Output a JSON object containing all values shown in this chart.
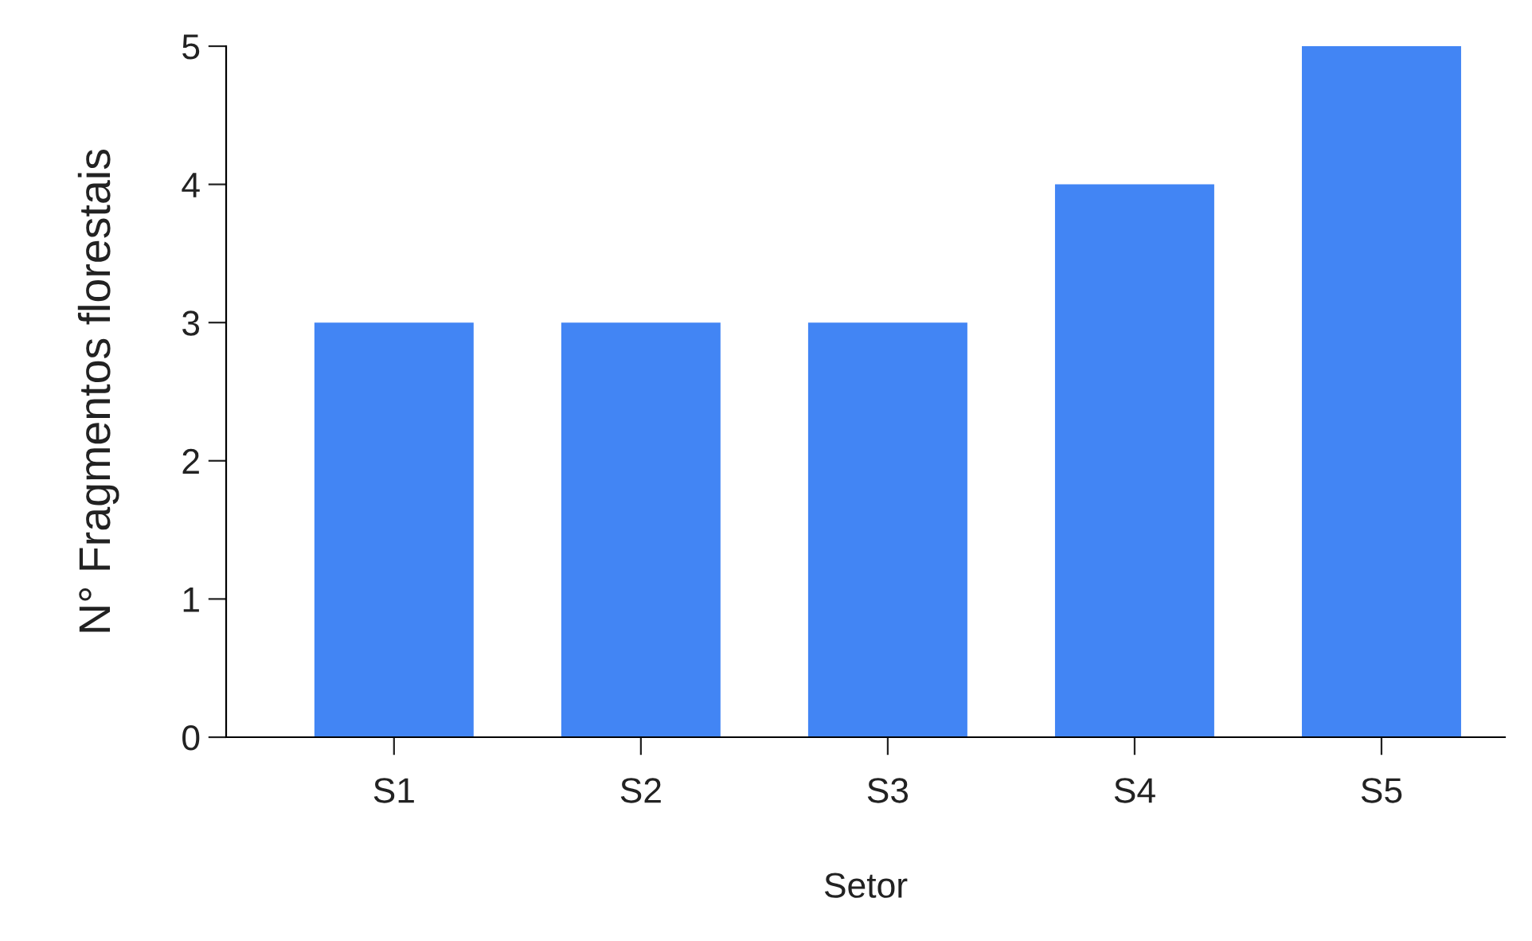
{
  "chart_data": {
    "type": "bar",
    "xlabel": "Setor",
    "ylabel": "N° Fragmentos florestais",
    "categories": [
      "S1",
      "S2",
      "S3",
      "S4",
      "S5"
    ],
    "values": [
      3,
      3,
      3,
      4,
      5
    ],
    "color": "#4285f4",
    "ylim": [
      0,
      5
    ],
    "yticks": [
      0,
      1,
      2,
      3,
      4,
      5
    ],
    "grid": false,
    "legend": false
  }
}
